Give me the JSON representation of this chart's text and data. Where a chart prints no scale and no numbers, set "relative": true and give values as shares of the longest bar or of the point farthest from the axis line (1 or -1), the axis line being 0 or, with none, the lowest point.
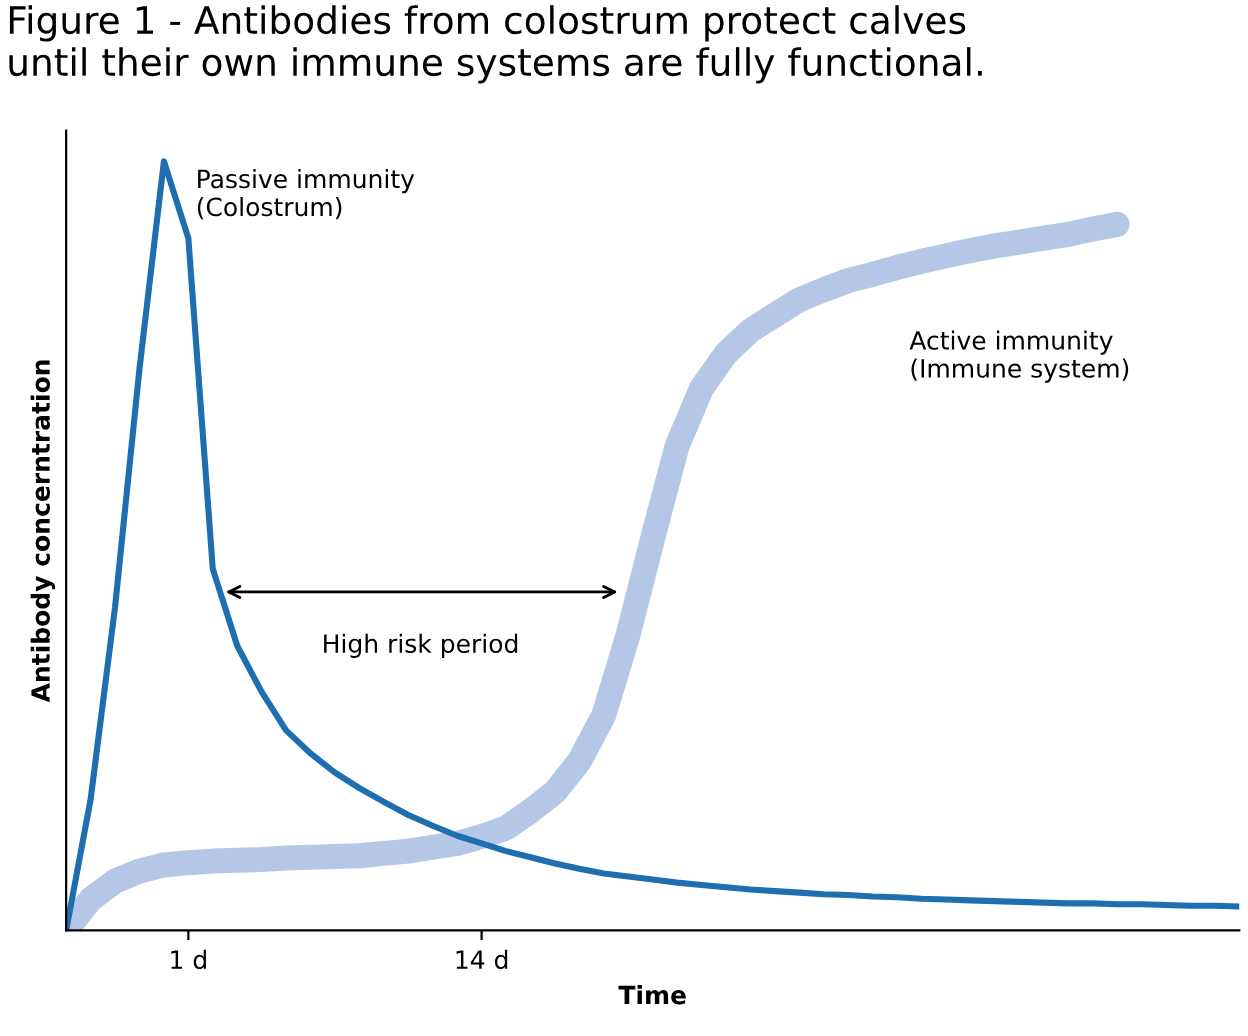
{
  "chart_data": {
    "type": "line",
    "relative": true,
    "title": "Figure 1 - Antibodies from colostrum protect calves\nuntil their own immune systems are fully functional.",
    "xlabel": "Time",
    "ylabel": "Antibody concerntration",
    "categories": [
      null,
      null,
      null,
      null,
      null,
      "1 d",
      null,
      null,
      null,
      null,
      null,
      null,
      null,
      null,
      null,
      null,
      null,
      "14 d",
      null,
      null,
      null,
      null,
      null,
      null,
      null,
      null,
      null,
      null,
      null,
      null,
      null,
      null,
      null,
      null,
      null,
      null,
      null,
      null,
      null,
      null,
      null,
      null,
      null,
      null,
      null,
      null,
      null,
      null,
      null
    ],
    "series": [
      {
        "color": "#1f6fb0",
        "values": [
          0,
          0.17,
          0.42,
          0.73,
          1,
          0.9,
          0.47,
          0.37,
          0.31,
          0.26,
          0.23,
          0.205,
          0.185,
          0.167,
          0.15,
          0.136,
          0.123,
          0.113,
          0.103,
          0.095,
          0.087,
          0.08,
          0.074,
          0.07,
          0.066,
          0.062,
          0.059,
          0.056,
          0.053,
          0.051,
          0.049,
          0.047,
          0.046,
          0.044,
          0.043,
          0.041,
          0.04,
          0.039,
          0.038,
          0.037,
          0.036,
          0.035,
          0.035,
          0.034,
          0.034,
          0.033,
          0.032,
          0.032,
          0.031
        ]
      },
      {
        "color": "#b4c7e7",
        "values": [
          0,
          0.04,
          0.064,
          0.077,
          0.085,
          0.088,
          0.09,
          0.091,
          0.092,
          0.094,
          0.095,
          0.096,
          0.097,
          0.1,
          0.103,
          0.108,
          0.113,
          0.122,
          0.133,
          0.155,
          0.18,
          0.22,
          0.28,
          0.385,
          0.51,
          0.63,
          0.705,
          0.75,
          0.78,
          0.8,
          0.82,
          0.833,
          0.845,
          0.853,
          0.862,
          0.87,
          0.877,
          0.884,
          0.89,
          0.895,
          0.9,
          0.905,
          0.912,
          0.918,
          null,
          null,
          null,
          null,
          null
        ]
      }
    ],
    "annotations": [
      "Passive immunity\n(Colostrum)",
      "Active immunity\n(Immune system)",
      "High risk period"
    ],
    "grid": false,
    "legend": false,
    "marker": "none",
    "line_style": "solid"
  }
}
